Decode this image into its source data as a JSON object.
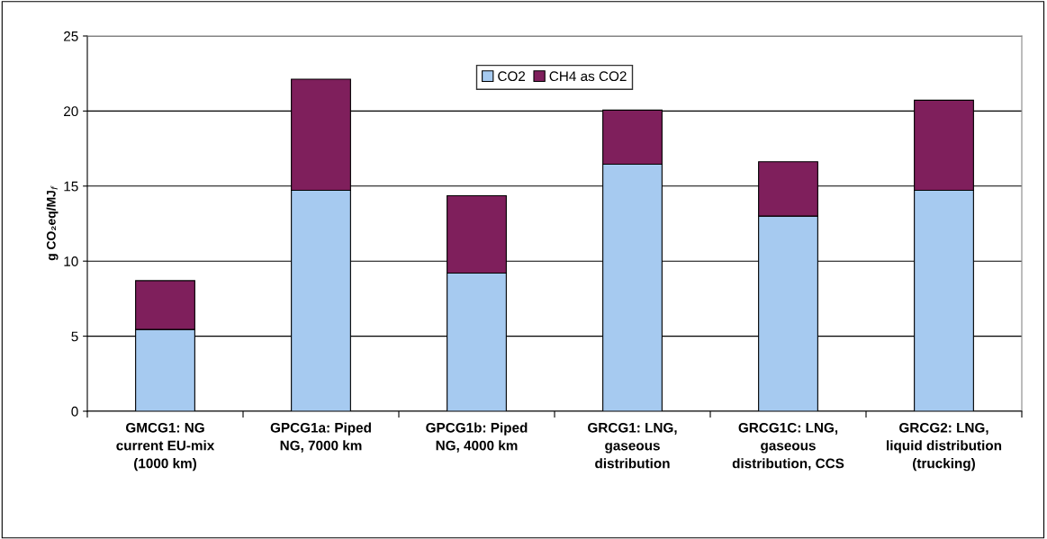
{
  "chart_data": {
    "type": "bar",
    "stacked": true,
    "ylabel": "g CO₂eq/MJ$_{f}$",
    "categories": [
      "GMCG1: NG\ncurrent EU-mix\n(1000 km)",
      "GPCG1a: Piped\nNG, 7000 km",
      "GPCG1b: Piped\nNG, 4000 km",
      "GRCG1: LNG,\ngaseous\ndistribution",
      "GRCG1C: LNG,\ngaseous\ndistribution, CCS",
      "GRCG2: LNG,\nliquid distribution\n(trucking)"
    ],
    "series": [
      {
        "name": "CO2",
        "color": "#a6caf0",
        "values": [
          5.45,
          14.72,
          9.2,
          16.46,
          13.0,
          14.72
        ]
      },
      {
        "name": "CH4 as CO2",
        "color": "#7f1f5c",
        "values": [
          3.25,
          7.4,
          5.16,
          3.6,
          3.62,
          6.0
        ]
      }
    ],
    "ylim": [
      0,
      25
    ],
    "yticks": [
      0,
      5,
      10,
      15,
      20,
      25
    ],
    "grid": "y",
    "legend": "top"
  }
}
